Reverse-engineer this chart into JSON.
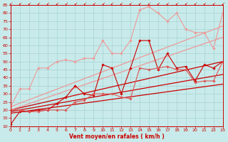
{
  "xlabel": "Vent moyen/en rafales ( km/h )",
  "xlim": [
    0,
    23
  ],
  "ylim": [
    10,
    85
  ],
  "yticks": [
    10,
    15,
    20,
    25,
    30,
    35,
    40,
    45,
    50,
    55,
    60,
    65,
    70,
    75,
    80,
    85
  ],
  "xticks": [
    0,
    1,
    2,
    3,
    4,
    5,
    6,
    7,
    8,
    9,
    10,
    11,
    12,
    13,
    14,
    15,
    16,
    17,
    18,
    19,
    20,
    21,
    22,
    23
  ],
  "bg_color": "#c8eaea",
  "grid_color": "#a0cccc",
  "lines": [
    {
      "x": [
        0,
        1,
        2,
        3,
        4,
        5,
        6,
        7,
        8,
        9,
        10,
        11,
        12,
        13,
        14,
        15,
        16,
        17,
        18,
        19,
        20,
        21,
        22,
        23
      ],
      "y": [
        11,
        19,
        19,
        20,
        20,
        24,
        28,
        35,
        30,
        29,
        48,
        46,
        30,
        46,
        63,
        63,
        45,
        55,
        46,
        47,
        38,
        48,
        46,
        50
      ],
      "color": "#cc0000",
      "lw": 0.8,
      "marker": "D",
      "ms": 1.8
    },
    {
      "x": [
        0,
        1,
        2,
        3,
        4,
        5,
        6,
        7,
        8,
        9,
        10,
        11,
        12,
        13,
        14,
        15,
        16,
        17,
        18,
        19,
        20,
        21,
        22,
        23
      ],
      "y": [
        20,
        20,
        19,
        19,
        20,
        20,
        20,
        25,
        26,
        30,
        30,
        30,
        28,
        27,
        46,
        45,
        46,
        47,
        45,
        45,
        37,
        38,
        38,
        50
      ],
      "color": "#dd5555",
      "lw": 0.8,
      "marker": "D",
      "ms": 1.8
    },
    {
      "x": [
        0,
        1,
        2,
        3,
        4,
        5,
        6,
        7,
        8,
        9,
        10,
        11,
        12,
        13,
        14,
        15,
        16,
        17,
        18,
        19,
        20,
        21,
        22,
        23
      ],
      "y": [
        22,
        33,
        33,
        46,
        46,
        50,
        51,
        50,
        52,
        52,
        63,
        55,
        55,
        63,
        82,
        84,
        80,
        75,
        80,
        70,
        68,
        68,
        58,
        80
      ],
      "color": "#ee9999",
      "lw": 0.8,
      "marker": "D",
      "ms": 1.8
    },
    {
      "x": [
        0,
        23
      ],
      "y": [
        20,
        50
      ],
      "color": "#cc0000",
      "lw": 0.9,
      "marker": null,
      "ms": 0
    },
    {
      "x": [
        0,
        23
      ],
      "y": [
        19,
        42
      ],
      "color": "#cc0000",
      "lw": 0.9,
      "marker": null,
      "ms": 0
    },
    {
      "x": [
        0,
        23
      ],
      "y": [
        18,
        36
      ],
      "color": "#cc0000",
      "lw": 0.9,
      "marker": null,
      "ms": 0
    },
    {
      "x": [
        0,
        23
      ],
      "y": [
        22,
        72
      ],
      "color": "#ee9999",
      "lw": 0.9,
      "marker": null,
      "ms": 0
    },
    {
      "x": [
        0,
        23
      ],
      "y": [
        20,
        65
      ],
      "color": "#ee9999",
      "lw": 0.9,
      "marker": null,
      "ms": 0
    }
  ]
}
